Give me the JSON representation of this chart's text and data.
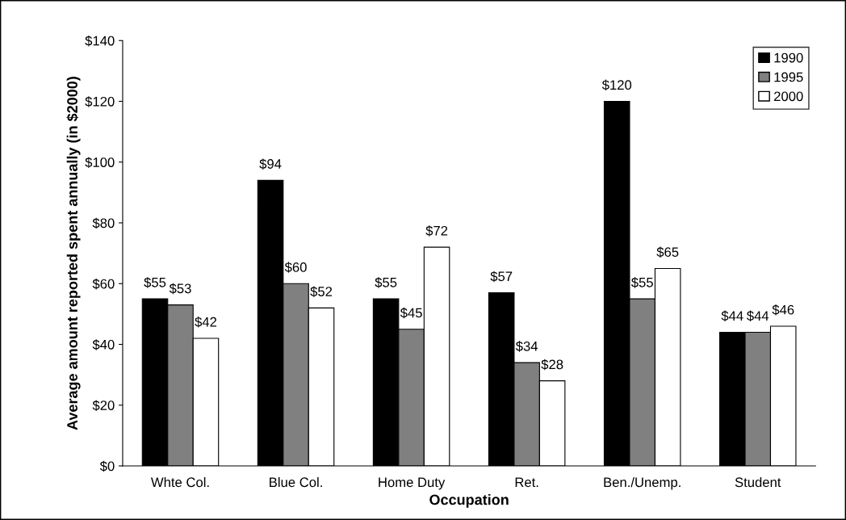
{
  "chart_data": {
    "type": "bar",
    "xlabel": "Occupation",
    "ylabel": "Average amount reported spent annually (in $2000)",
    "categories": [
      "Whte Col.",
      "Blue Col.",
      "Home Duty",
      "Ret.",
      "Ben./Unemp.",
      "Student"
    ],
    "series": [
      {
        "name": "1990",
        "color": "#000000",
        "values": [
          55,
          94,
          55,
          57,
          120,
          44
        ],
        "value_labels": [
          "$55",
          "$94",
          "$55",
          "$57",
          "$120",
          "$44"
        ]
      },
      {
        "name": "1995",
        "color": "#808080",
        "values": [
          53,
          60,
          45,
          34,
          55,
          44
        ],
        "value_labels": [
          "$53",
          "$60",
          "$45",
          "$34",
          "$55",
          "$44"
        ]
      },
      {
        "name": "2000",
        "color": "#ffffff",
        "values": [
          42,
          52,
          72,
          28,
          65,
          46
        ],
        "value_labels": [
          "$42",
          "$52",
          "$72",
          "$28",
          "$65",
          "$46"
        ]
      }
    ],
    "ylim": [
      0,
      140
    ],
    "yticks": [
      {
        "value": 0,
        "label": "$0"
      },
      {
        "value": 20,
        "label": "$20"
      },
      {
        "value": 40,
        "label": "$40"
      },
      {
        "value": 60,
        "label": "$60"
      },
      {
        "value": 80,
        "label": "$80"
      },
      {
        "value": 100,
        "label": "$100"
      },
      {
        "value": 120,
        "label": "$120"
      },
      {
        "value": 140,
        "label": "$140"
      }
    ],
    "grid": false,
    "legend": "top right"
  }
}
